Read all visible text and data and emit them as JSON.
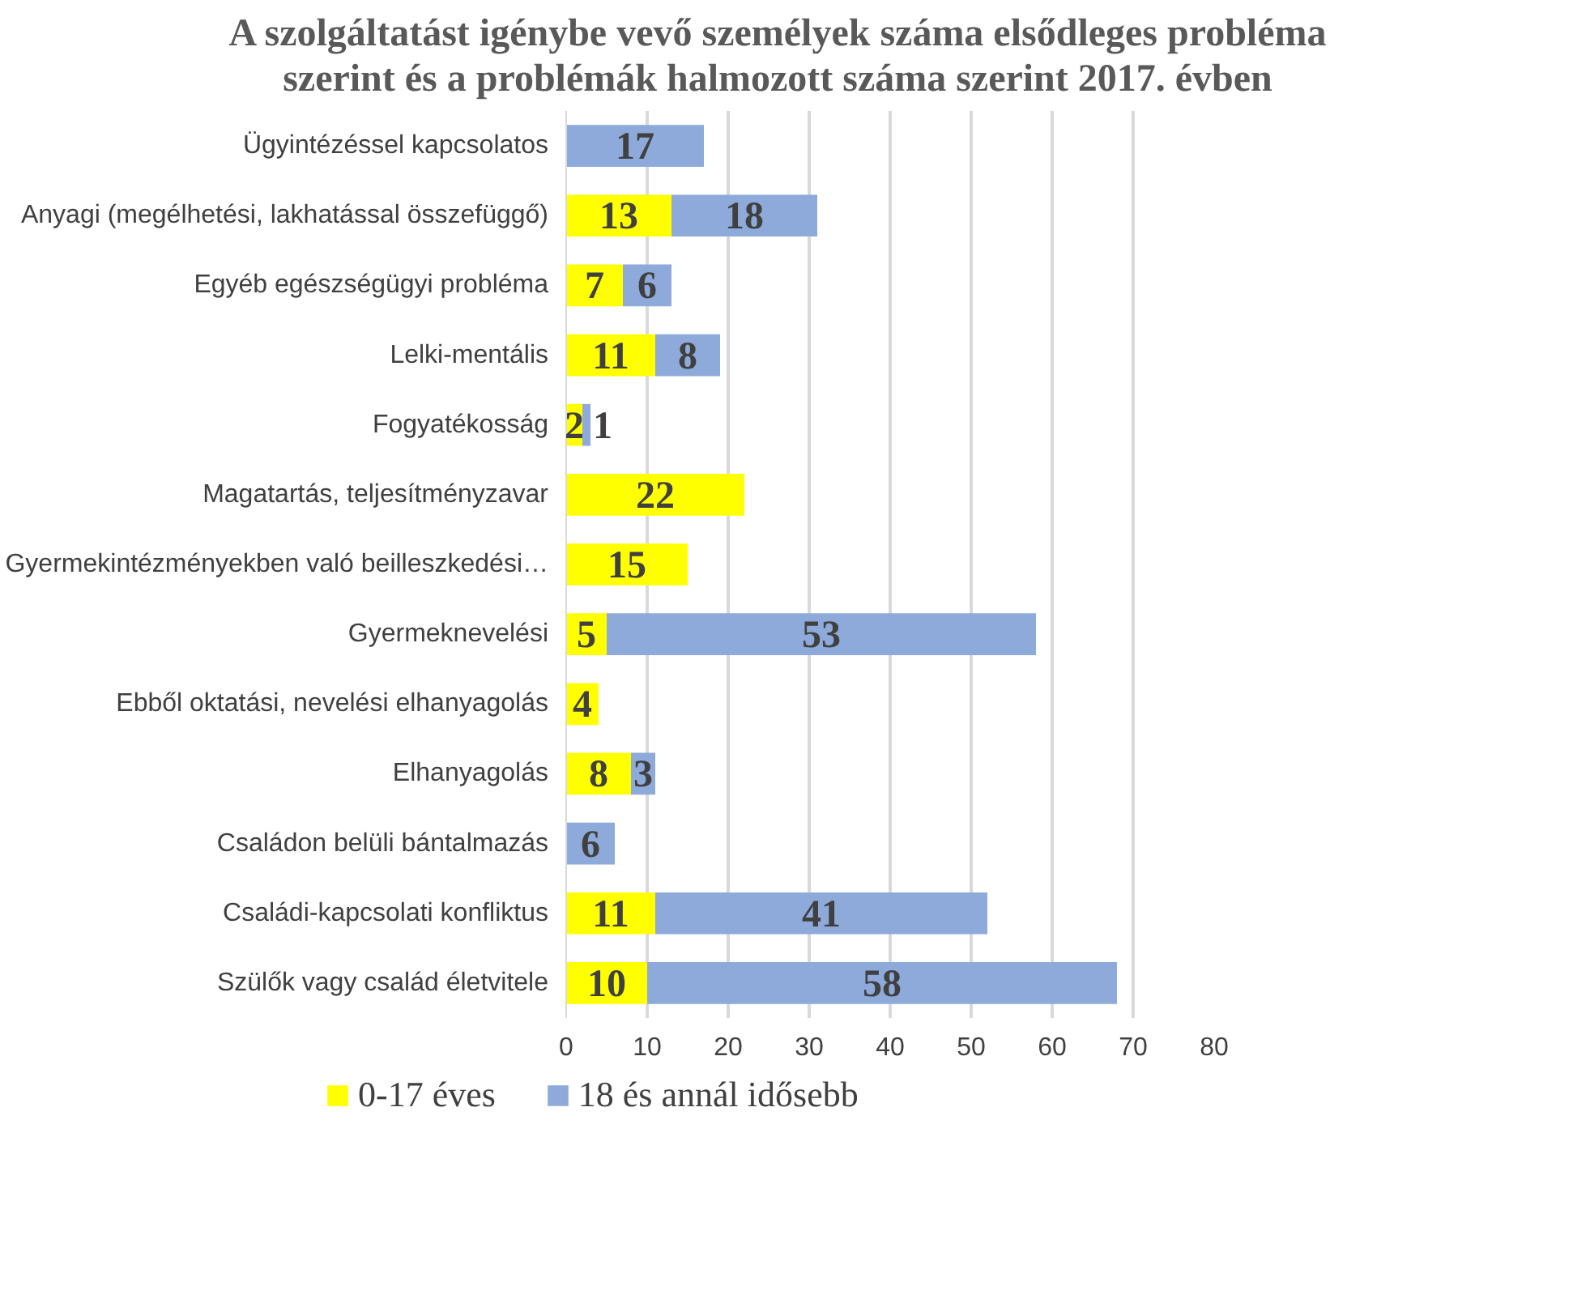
{
  "chart_data": {
    "type": "bar",
    "orientation": "horizontal",
    "stacked": true,
    "title": "A szolgáltatást igénybe vevő személyek száma elsődleges probléma szerint és a problémák halmozott száma szerint 2017. évben",
    "categories": [
      "Ügyintézéssel kapcsolatos",
      "Anyagi (megélhetési, lakhatással összefüggő)",
      "Egyéb egészségügyi probléma",
      "Lelki-mentális",
      "Fogyatékosság",
      "Magatartás, teljesítményzavar",
      "Gyermekintézményekben való beilleszkedési…",
      "Gyermeknevelési",
      "Ebből oktatási, nevelési elhanyagolás",
      "Elhanyagolás",
      "Családon belüli bántalmazás",
      "Családi-kapcsolati konfliktus",
      "Szülők vagy család életvitele"
    ],
    "series": [
      {
        "name": "0-17 éves",
        "color": "#ffff00",
        "values": [
          null,
          13,
          7,
          11,
          2,
          22,
          15,
          5,
          4,
          8,
          null,
          11,
          10
        ]
      },
      {
        "name": "18 és annál idősebb",
        "color": "#8eaadb",
        "values": [
          17,
          18,
          6,
          8,
          1,
          null,
          null,
          53,
          null,
          3,
          6,
          41,
          58
        ]
      }
    ],
    "xlim": [
      0,
      80
    ],
    "xticks": [
      0,
      10,
      20,
      30,
      40,
      50,
      60,
      70,
      80
    ],
    "grid": "x",
    "legend": "bottom",
    "data_labels": true
  }
}
